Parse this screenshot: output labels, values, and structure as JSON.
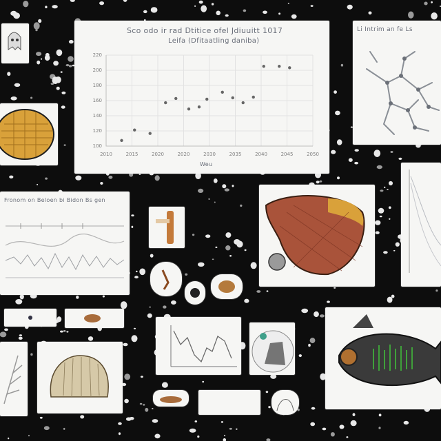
{
  "main_chart": {
    "title": "Sco odo ir rad Dtitice ofel Jdiuuitt 1017",
    "subtitle": "Leifa (Dfitaatling daniba)",
    "xlabel": "Weu",
    "x_ticks": [
      "2010",
      "2015",
      "2020",
      "2020",
      "2030",
      "2035",
      "2040",
      "2045",
      "2050"
    ],
    "y_ticks": [
      "100",
      "120",
      "140",
      "160",
      "180",
      "200",
      "220"
    ]
  },
  "chart_data": {
    "type": "scatter",
    "title": "Sco odo ir rad Dtitice ofel Jdiuuitt 1017",
    "subtitle": "Leifa (Dfitaatling daniba)",
    "xlabel": "Weu",
    "ylabel": "",
    "x": [
      0.6,
      1.1,
      1.7,
      2.3,
      2.7,
      3.2,
      3.6,
      3.9,
      4.5,
      4.9,
      5.3,
      5.7,
      6.1,
      6.7,
      7.1
    ],
    "y": [
      103,
      118,
      113,
      157,
      163,
      148,
      151,
      162,
      172,
      164,
      157,
      165,
      209,
      209,
      207
    ],
    "ylim": [
      95,
      225
    ],
    "grid": true
  },
  "tree_panel": {
    "title": "Li Intrim an fe Ls"
  },
  "wave_panel": {
    "title": "Fronom on Beloen bi Bidon Bs gen"
  },
  "colors": {
    "background": "#0d0d0d",
    "panel": "#f6f6f4",
    "amber": "#d9a13a",
    "rust": "#a9533a",
    "green": "#3fa03a"
  }
}
